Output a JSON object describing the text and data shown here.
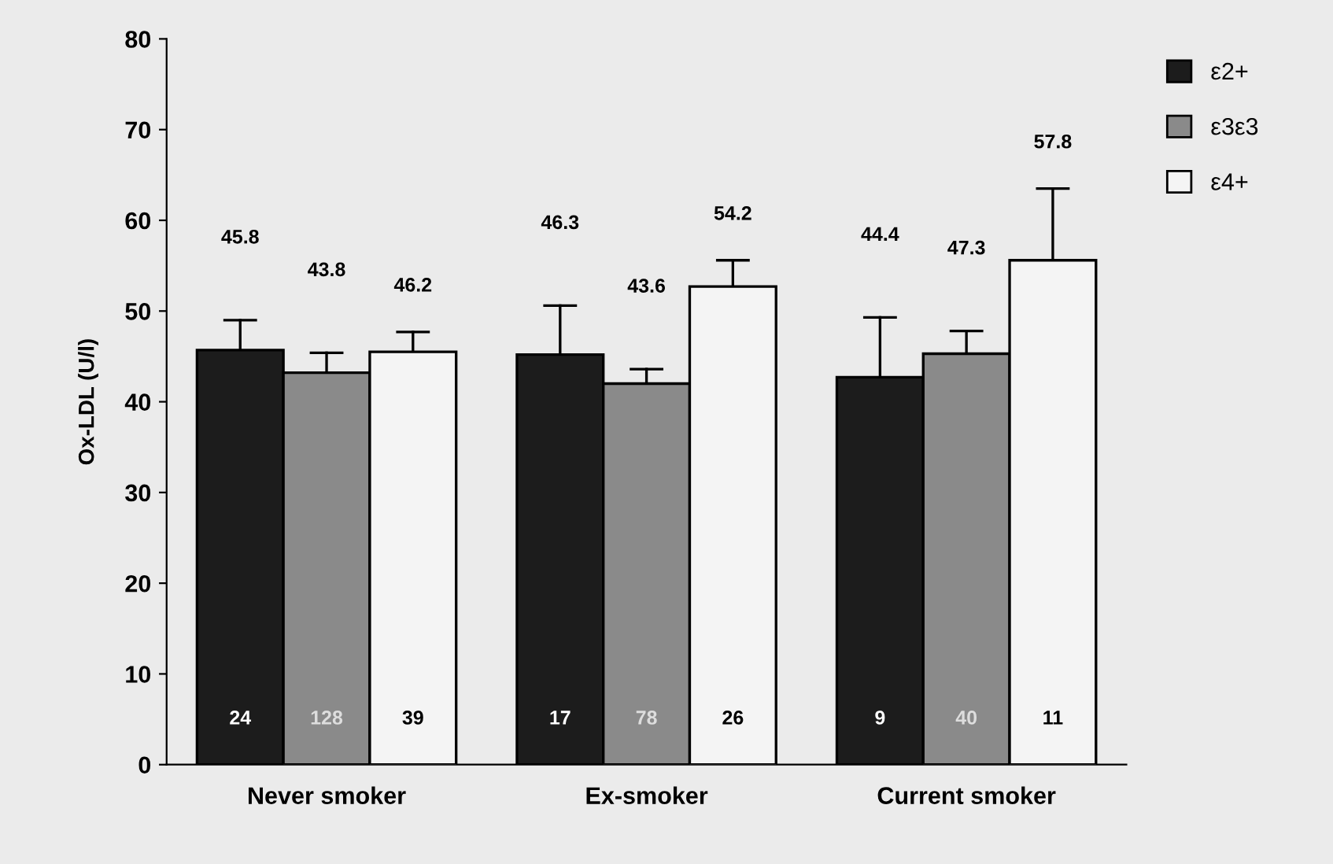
{
  "chart_data": {
    "type": "bar",
    "ylabel": "Ox-LDL (U/l)",
    "categories": [
      "Never smoker",
      "Ex-smoker",
      "Current smoker"
    ],
    "series": [
      {
        "name": "ε2+",
        "color": "#1c1c1c",
        "values": [
          45.7,
          45.2,
          42.7
        ],
        "errors": [
          [
            45.7,
            49.0
          ],
          [
            45.2,
            50.6
          ],
          [
            42.7,
            49.3
          ]
        ]
      },
      {
        "name": "ε3ε3",
        "color": "#8a8a8a",
        "values": [
          43.2,
          42.0,
          45.3
        ],
        "errors": [
          [
            43.2,
            45.4
          ],
          [
            42.0,
            43.6
          ],
          [
            45.3,
            47.8
          ]
        ]
      },
      {
        "name": "ε4+",
        "color": "#f4f4f4",
        "values": [
          45.5,
          52.7,
          55.6
        ],
        "errors": [
          [
            45.5,
            47.7
          ],
          [
            52.7,
            55.6
          ],
          [
            55.6,
            63.5
          ]
        ]
      }
    ],
    "annotations": [
      "45.8",
      "43.8",
      "46.2",
      "46.3",
      "43.6",
      "54.2",
      "44.4",
      "47.3",
      "57.8",
      "24",
      "128",
      "39",
      "17",
      "78",
      "26",
      "9",
      "40",
      "11"
    ],
    "ylim": [
      0,
      80
    ],
    "yticks": [
      0,
      10,
      20,
      30,
      40,
      50,
      60,
      70,
      80
    ],
    "grid": false,
    "legend": "top right"
  }
}
